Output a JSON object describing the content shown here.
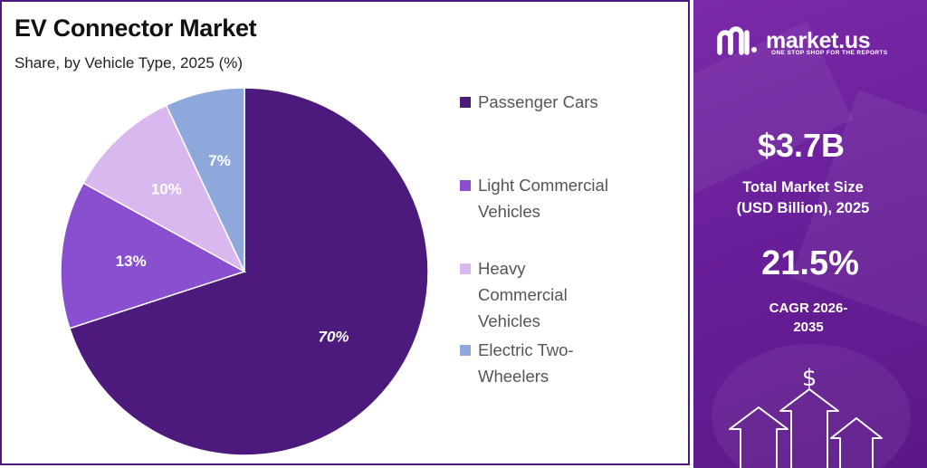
{
  "chart": {
    "title": "EV Connector Market",
    "subtitle": "Share, by Vehicle Type, 2025 (%)"
  },
  "chart_data": {
    "type": "pie",
    "title": "EV Connector Market",
    "subtitle": "Share, by Vehicle Type, 2025 (%)",
    "slices": [
      {
        "name": "Passenger Cars",
        "value": 70,
        "label": "70%",
        "color": "#4b1a7c"
      },
      {
        "name": "Light Commercial Vehicles",
        "value": 13,
        "label": "13%",
        "color": "#8a4fcf"
      },
      {
        "name": "Heavy Commercial Vehicles",
        "value": 10,
        "label": "10%",
        "color": "#d9b8f0"
      },
      {
        "name": "Electric Two-Wheelers",
        "value": 7,
        "label": "7%",
        "color": "#8fa8dc"
      }
    ],
    "legend_placement": "right"
  },
  "legend": {
    "items": [
      {
        "label": "Passenger Cars",
        "color": "#4b1a7c"
      },
      {
        "label": "Light Commercial Vehicles",
        "color": "#8a4fcf"
      },
      {
        "label": "Heavy Commercial Vehicles",
        "color": "#d9b8f0"
      },
      {
        "label": "Electric Two-Wheelers",
        "color": "#8fa8dc"
      }
    ]
  },
  "brand": {
    "name": "market.us",
    "tagline": "ONE STOP SHOP FOR THE REPORTS"
  },
  "stats": {
    "market_size": "$3.7B",
    "market_size_label": "Total Market Size (USD Billion), 2025",
    "cagr": "21.5%",
    "cagr_label": "CAGR 2026-2035"
  },
  "colors": {
    "panel_purple": "#6a1f9a",
    "border": "#4b1a7c"
  }
}
